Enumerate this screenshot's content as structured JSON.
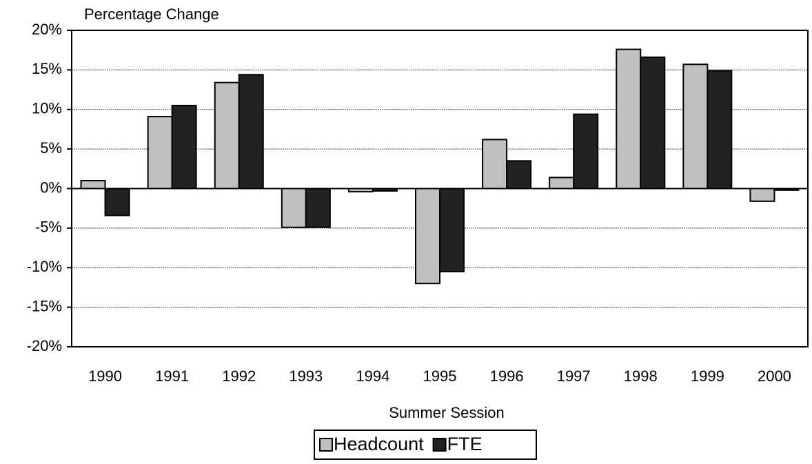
{
  "chart_data": {
    "type": "bar",
    "y_label": "Percentage Change",
    "x_label": "Summer Session",
    "categories": [
      "1990",
      "1991",
      "1992",
      "1993",
      "1994",
      "1995",
      "1996",
      "1997",
      "1998",
      "1999",
      "2000"
    ],
    "series": [
      {
        "name": "Headcount",
        "color": "#c0c0c0",
        "values": [
          1.0,
          9.1,
          13.4,
          -4.9,
          -0.4,
          -12.0,
          6.2,
          1.4,
          17.6,
          15.7,
          -1.6
        ]
      },
      {
        "name": "FTE",
        "color": "#222222",
        "values": [
          -3.4,
          10.5,
          14.4,
          -4.9,
          -0.3,
          -10.5,
          3.5,
          9.4,
          16.6,
          14.9,
          -0.2
        ]
      }
    ],
    "ylim": [
      -20,
      20
    ],
    "yticks": [
      {
        "value": -20,
        "label": "-20%"
      },
      {
        "value": -15,
        "label": "-15%"
      },
      {
        "value": -10,
        "label": "-10%"
      },
      {
        "value": -5,
        "label": "-5%"
      },
      {
        "value": 0,
        "label": "0%"
      },
      {
        "value": 5,
        "label": "5%"
      },
      {
        "value": 10,
        "label": "10%"
      },
      {
        "value": 15,
        "label": "15%"
      },
      {
        "value": 20,
        "label": "20%"
      }
    ],
    "grid": true,
    "legend": "bottom"
  }
}
